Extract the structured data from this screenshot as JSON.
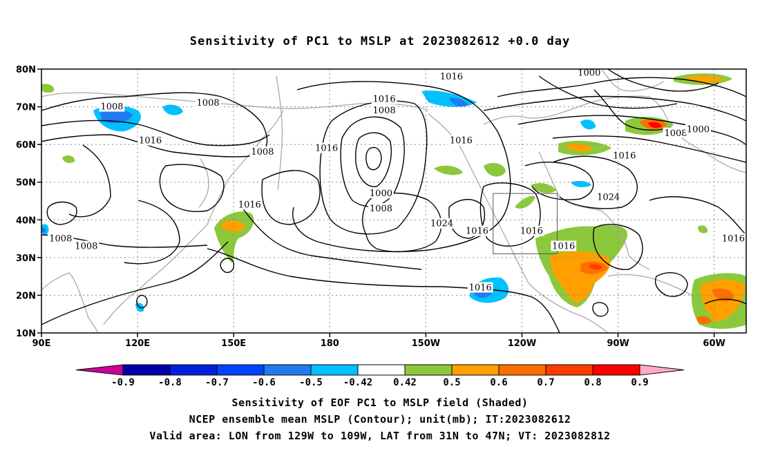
{
  "title": "Sensitivity of PC1 to MSLP at 2023082612 +0.0 day",
  "map": {
    "lat_ticks": [
      "80N",
      "70N",
      "60N",
      "50N",
      "40N",
      "30N",
      "20N",
      "10N"
    ],
    "lon_ticks": [
      "90E",
      "120E",
      "150E",
      "180",
      "150W",
      "120W",
      "90W",
      "60W"
    ],
    "lat_range": [
      10,
      80
    ],
    "lon_range_east": [
      90,
      310
    ],
    "valid_box": {
      "lon": [
        -129,
        -109
      ],
      "lat": [
        31,
        47
      ]
    },
    "contour_labels": [
      {
        "text": "1016",
        "lon": 218,
        "lat": 78
      },
      {
        "text": "1000",
        "lon": 261,
        "lat": 79
      },
      {
        "text": "1008",
        "lon": 112,
        "lat": 70
      },
      {
        "text": "1008",
        "lon": 142,
        "lat": 71
      },
      {
        "text": "1016",
        "lon": 197,
        "lat": 72
      },
      {
        "text": "1008",
        "lon": 197,
        "lat": 69
      },
      {
        "text": "1016",
        "lon": 124,
        "lat": 61
      },
      {
        "text": "1008",
        "lon": 159,
        "lat": 58
      },
      {
        "text": "1016",
        "lon": 179,
        "lat": 59
      },
      {
        "text": "1016",
        "lon": 221,
        "lat": 61
      },
      {
        "text": "1008",
        "lon": 288,
        "lat": 63
      },
      {
        "text": "1000",
        "lon": 295,
        "lat": 64
      },
      {
        "text": "1016",
        "lon": 272,
        "lat": 57
      },
      {
        "text": "1000",
        "lon": 196,
        "lat": 47
      },
      {
        "text": "1008",
        "lon": 196,
        "lat": 43
      },
      {
        "text": "1016",
        "lon": 155,
        "lat": 44
      },
      {
        "text": "1024",
        "lon": 267,
        "lat": 46
      },
      {
        "text": "1024",
        "lon": 215,
        "lat": 39
      },
      {
        "text": "1016",
        "lon": 226,
        "lat": 37
      },
      {
        "text": "1016",
        "lon": 243,
        "lat": 37
      },
      {
        "text": "1016",
        "lon": 253,
        "lat": 33
      },
      {
        "text": "1008",
        "lon": 96,
        "lat": 35
      },
      {
        "text": "1008",
        "lon": 104,
        "lat": 33
      },
      {
        "text": "1016",
        "lon": 306,
        "lat": 35
      },
      {
        "text": "1016",
        "lon": 227,
        "lat": 22
      }
    ]
  },
  "colorbar": {
    "labels": [
      "-0.9",
      "-0.8",
      "-0.7",
      "-0.6",
      "-0.5",
      "-0.42",
      "0.42",
      "0.5",
      "0.6",
      "0.7",
      "0.8",
      "0.9"
    ],
    "colors": [
      "#0000aa",
      "#0022dd",
      "#0044ff",
      "#1e7cf0",
      "#00c0ff",
      "#ffffff",
      "#8cc83c",
      "#ffa000",
      "#ff6e00",
      "#ff3c00",
      "#ff0000"
    ],
    "end_low": "#cc0099",
    "end_high": "#ffaacc"
  },
  "captions": [
    "Sensitivity of EOF PC1 to MSLP field (Shaded)",
    "NCEP ensemble mean MSLP (Contour); unit(mb); IT:2023082612",
    "Valid area: LON from 129W to 109W, LAT from 31N to 47N; VT: 2023082812"
  ]
}
